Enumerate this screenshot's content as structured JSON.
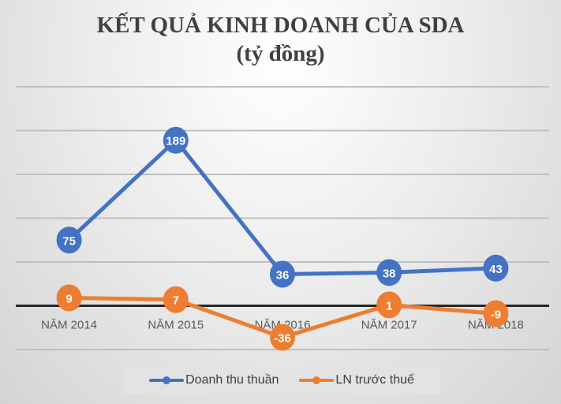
{
  "chart_data": {
    "type": "line",
    "title": "KẾT QUẢ KINH DOANH CỦA SDA",
    "subtitle": "(tỷ đồng)",
    "categories": [
      "NĂM 2014",
      "NĂM 2015",
      "NĂM 2016",
      "NĂM 2017",
      "NĂM 2018"
    ],
    "series": [
      {
        "name": "Doanh thu thuần",
        "color": "#4472c4",
        "values": [
          75,
          189,
          36,
          38,
          43
        ]
      },
      {
        "name": "LN trước thuế",
        "color": "#ed7d31",
        "values": [
          9,
          7,
          -36,
          1,
          -9
        ]
      }
    ],
    "ylim": [
      -50,
      250
    ],
    "grid": true,
    "gridlines": [
      -50,
      0,
      50,
      100,
      150,
      200,
      250
    ],
    "legend_position": "bottom"
  }
}
